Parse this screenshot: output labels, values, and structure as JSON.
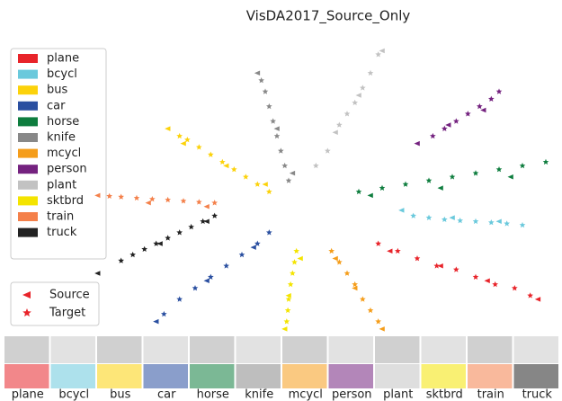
{
  "chart_data": {
    "type": "scatter",
    "title": "VisDA2017_Source_Only",
    "xlim": [
      -60,
      60
    ],
    "ylim": [
      -40,
      40
    ],
    "markers": [
      {
        "name": "Source",
        "shape": "triangle"
      },
      {
        "name": "Target",
        "shape": "star"
      }
    ],
    "series": [
      {
        "name": "plane",
        "color": "#e8242a",
        "source_x": [
          17,
          30,
          42,
          55
        ],
        "source_y": [
          -18,
          -22,
          -26,
          -31
        ],
        "target_x": [
          14,
          19,
          24,
          29,
          34,
          39,
          44,
          49,
          53
        ],
        "target_y": [
          -16,
          -18,
          -20,
          -22,
          -23,
          -25,
          -27,
          -28,
          -30
        ]
      },
      {
        "name": "bcycl",
        "color": "#6ac9dc",
        "source_x": [
          20,
          33,
          45
        ],
        "source_y": [
          -7,
          -9,
          -10
        ],
        "target_x": [
          23,
          27,
          31,
          35,
          39,
          43,
          47,
          51
        ],
        "target_y": [
          -8.5,
          -9,
          -9.5,
          -9.8,
          -10,
          -10.3,
          -10.6,
          -11
        ]
      },
      {
        "name": "bus",
        "color": "#fcd20a",
        "source_x": [
          -15,
          -25,
          -36,
          -40
        ],
        "source_y": [
          0,
          5,
          11,
          15
        ],
        "target_x": [
          -14,
          -17,
          -20,
          -23,
          -26,
          -29,
          -32,
          -35,
          -37
        ],
        "target_y": [
          -2,
          0,
          2,
          4,
          6,
          8,
          10,
          12,
          13
        ]
      },
      {
        "name": "car",
        "color": "#2a4fa0",
        "source_x": [
          -18,
          -30,
          -43
        ],
        "source_y": [
          -17,
          -26,
          -37
        ],
        "target_x": [
          -14,
          -17,
          -21,
          -25,
          -29,
          -33,
          -37,
          -41
        ],
        "target_y": [
          -13,
          -16,
          -19,
          -22,
          -25,
          -28,
          -31,
          -35
        ]
      },
      {
        "name": "horse",
        "color": "#0e7d3e",
        "source_x": [
          12,
          30,
          48
        ],
        "source_y": [
          -3,
          -1,
          2
        ],
        "target_x": [
          9,
          15,
          21,
          27,
          33,
          39,
          45,
          51,
          57
        ],
        "target_y": [
          -2,
          -1,
          0,
          1,
          2,
          3,
          4,
          5,
          6
        ]
      },
      {
        "name": "knife",
        "color": "#888888",
        "source_x": [
          -8,
          -12,
          -17
        ],
        "source_y": [
          3,
          15,
          30
        ],
        "target_x": [
          -9,
          -10,
          -11,
          -12,
          -13,
          -14,
          -15,
          -16
        ],
        "target_y": [
          1,
          5,
          9,
          13,
          17,
          21,
          25,
          28
        ]
      },
      {
        "name": "mcycl",
        "color": "#f59d1a",
        "source_x": [
          3,
          8,
          15
        ],
        "source_y": [
          -20,
          -28,
          -39
        ],
        "target_x": [
          2,
          4,
          6,
          8,
          10,
          12,
          14
        ],
        "target_y": [
          -18,
          -21,
          -24,
          -27,
          -31,
          -34,
          -37
        ]
      },
      {
        "name": "person",
        "color": "#74227f",
        "source_x": [
          24,
          32,
          41
        ],
        "source_y": [
          11,
          16,
          20
        ],
        "target_x": [
          28,
          31,
          34,
          37,
          40,
          43,
          45
        ],
        "target_y": [
          13,
          15,
          17,
          19,
          21,
          23,
          25
        ]
      },
      {
        "name": "plant",
        "color": "#c2c2c2",
        "source_x": [
          3,
          9,
          15
        ],
        "source_y": [
          14,
          24,
          36
        ],
        "target_x": [
          4,
          6,
          8,
          10,
          12,
          14,
          -2,
          1
        ],
        "target_y": [
          16,
          19,
          22,
          26,
          30,
          35,
          5,
          9
        ]
      },
      {
        "name": "sktbrd",
        "color": "#f4e400",
        "source_x": [
          -6,
          -9,
          -10
        ],
        "source_y": [
          -20,
          -30,
          -39
        ],
        "target_x": [
          -7,
          -7.5,
          -8,
          -8.5,
          -9,
          -9.2,
          -9.5
        ],
        "target_y": [
          -18,
          -21,
          -24,
          -27,
          -31,
          -34,
          -37
        ]
      },
      {
        "name": "train",
        "color": "#f4804a",
        "source_x": [
          -30,
          -45,
          -58
        ],
        "source_y": [
          -6,
          -5,
          -3
        ],
        "target_x": [
          -28,
          -32,
          -36,
          -40,
          -44,
          -48,
          -52,
          -55
        ],
        "target_y": [
          -5,
          -4.8,
          -4.5,
          -4.2,
          -4,
          -3.7,
          -3.4,
          -3.2
        ]
      },
      {
        "name": "truck",
        "color": "#222222",
        "source_x": [
          -30,
          -42,
          -58
        ],
        "source_y": [
          -10,
          -16,
          -24
        ],
        "target_x": [
          -28,
          -31,
          -34,
          -37,
          -40,
          -43,
          -46,
          -49,
          -52
        ],
        "target_y": [
          -8.5,
          -10,
          -11.5,
          -13,
          -14.5,
          -16,
          -17.5,
          -19,
          -20.6
        ]
      }
    ]
  }
}
